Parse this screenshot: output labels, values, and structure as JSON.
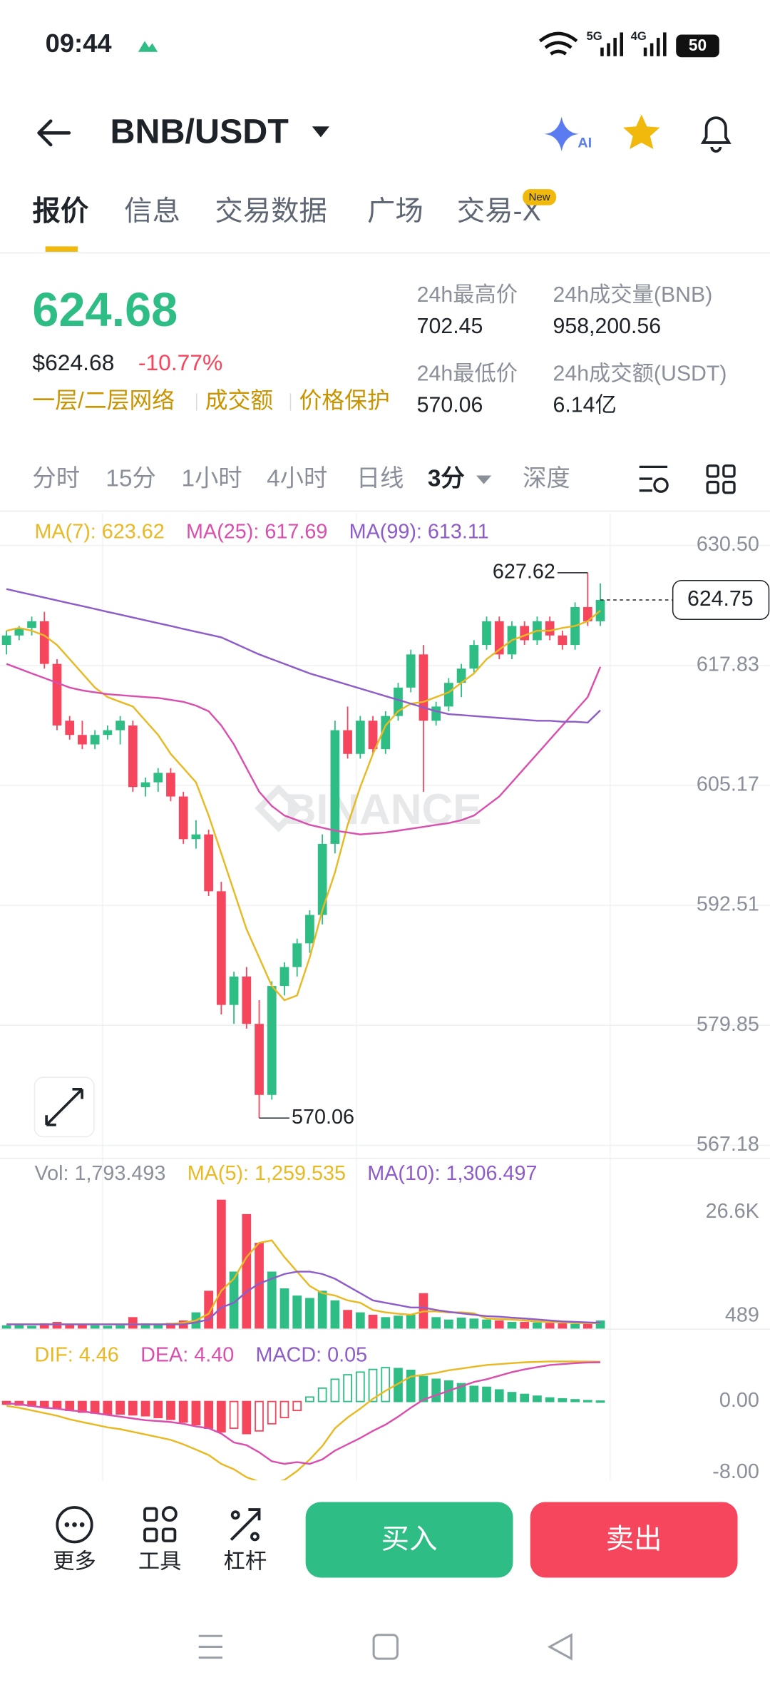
{
  "status_bar": {
    "time": "09:44",
    "net1": "5G",
    "net2": "4G",
    "battery": "50"
  },
  "header": {
    "pair": "BNB/USDT",
    "ai": "AI"
  },
  "tabs": {
    "items": [
      "报价",
      "信息",
      "交易数据",
      "广场",
      "交易-X"
    ],
    "badge": "New"
  },
  "ticker": {
    "price": "624.68",
    "usd": "$624.68",
    "change": "-10.77%",
    "tags": [
      "一层/二层网络",
      "成交额",
      "价格保护"
    ],
    "stats": [
      {
        "label": "24h最高价",
        "value": "702.45"
      },
      {
        "label": "24h成交量(BNB)",
        "value": "958,200.56"
      },
      {
        "label": "24h最低价",
        "value": "570.06"
      },
      {
        "label": "24h成交额(USDT)",
        "value": "6.14亿"
      }
    ]
  },
  "intervals": [
    "分时",
    "15分",
    "1小时",
    "4小时",
    "日线",
    "3分",
    "深度"
  ],
  "kline": {
    "watermark": "BINANCE",
    "legend": [
      "MA(7): 623.62",
      "MA(25): 617.69",
      "MA(99): 613.11"
    ],
    "ylim": [
      565.8,
      633.9
    ],
    "yticks": [
      {
        "value": 630.5,
        "label": "630.50"
      },
      617.83,
      605.17,
      592.51,
      579.85,
      567.18
    ],
    "up_color": "#2ebd85",
    "down_color": "#f6465d",
    "candles": [
      [
        620.0,
        621.5,
        619.0,
        621.0
      ],
      [
        621.0,
        622.0,
        620.5,
        621.8
      ],
      [
        621.8,
        623.0,
        621.0,
        622.5
      ],
      [
        622.5,
        623.5,
        617.5,
        618.0
      ],
      [
        618.0,
        618.5,
        611.0,
        611.5
      ],
      [
        612.0,
        612.5,
        610.0,
        610.5
      ],
      [
        610.5,
        612.0,
        609.0,
        609.5
      ],
      [
        609.5,
        611.0,
        609.0,
        610.5
      ],
      [
        610.5,
        611.5,
        610.0,
        611.0
      ],
      [
        611.0,
        612.5,
        609.5,
        612.0
      ],
      [
        611.5,
        612.0,
        604.5,
        605.0
      ],
      [
        605.0,
        606.0,
        604.0,
        605.5
      ],
      [
        605.5,
        607.0,
        604.5,
        606.5
      ],
      [
        606.5,
        607.0,
        603.5,
        604.0
      ],
      [
        604.0,
        604.5,
        599.0,
        599.5
      ],
      [
        599.5,
        601.5,
        598.5,
        600.0
      ],
      [
        600.0,
        600.5,
        593.5,
        594.0
      ],
      [
        594.0,
        595.0,
        581.0,
        582.0
      ],
      [
        582.0,
        585.5,
        580.0,
        585.0
      ],
      [
        585.0,
        586.0,
        579.5,
        580.0
      ],
      [
        580.0,
        582.5,
        570.06,
        572.5
      ],
      [
        572.5,
        584.5,
        572.0,
        584.0
      ],
      [
        584.0,
        586.5,
        583.0,
        586.0
      ],
      [
        586.0,
        589.0,
        585.0,
        588.5
      ],
      [
        588.5,
        592.0,
        587.5,
        591.5
      ],
      [
        591.5,
        600.0,
        590.5,
        599.0
      ],
      [
        599.0,
        612.0,
        598.0,
        611.0
      ],
      [
        611.0,
        613.5,
        608.0,
        608.5
      ],
      [
        608.5,
        612.5,
        608.0,
        612.0
      ],
      [
        612.0,
        612.5,
        608.5,
        609.0
      ],
      [
        609.0,
        613.0,
        608.5,
        612.5
      ],
      [
        612.5,
        616.0,
        612.0,
        615.5
      ],
      [
        615.5,
        619.5,
        615.0,
        619.0
      ],
      [
        619.0,
        620.0,
        604.5,
        612.0
      ],
      [
        612.0,
        614.0,
        611.5,
        613.5
      ],
      [
        613.5,
        616.5,
        613.0,
        616.0
      ],
      [
        616.0,
        618.0,
        614.5,
        617.5
      ],
      [
        617.5,
        620.5,
        617.0,
        620.0
      ],
      [
        620.0,
        623.0,
        619.5,
        622.5
      ],
      [
        622.5,
        623.0,
        618.5,
        619.0
      ],
      [
        619.0,
        622.5,
        618.5,
        622.0
      ],
      [
        622.0,
        622.5,
        620.0,
        620.5
      ],
      [
        620.5,
        623.0,
        620.0,
        622.5
      ],
      [
        622.5,
        623.0,
        620.5,
        621.0
      ],
      [
        621.0,
        621.5,
        619.5,
        620.0
      ],
      [
        620.0,
        624.5,
        619.5,
        624.0
      ],
      [
        624.0,
        627.62,
        622.0,
        622.5
      ],
      [
        622.5,
        626.5,
        622.0,
        624.75
      ]
    ],
    "ma": [
      {
        "name": "MA(7)",
        "color": "#e8b923",
        "values": [
          621.5,
          621.8,
          621.5,
          621,
          620,
          618.5,
          617,
          615.5,
          614.5,
          614,
          613.5,
          612,
          610.5,
          608.5,
          607,
          605.5,
          602,
          598,
          594,
          590,
          587,
          584,
          582.5,
          583,
          587,
          592,
          596,
          601,
          605,
          608.5,
          611.5,
          613,
          613.8,
          614,
          614.5,
          615,
          616,
          617,
          618.5,
          619.5,
          620.5,
          621,
          621.5,
          621.5,
          621.8,
          622,
          622.5,
          623.62
        ]
      },
      {
        "name": "MA(25)",
        "color": "#d94fae",
        "values": [
          618,
          617.5,
          617,
          616.5,
          616,
          615.5,
          615.2,
          615,
          614.8,
          614.7,
          614.6,
          614.5,
          614.4,
          614.2,
          614,
          613.6,
          613,
          611.5,
          609.5,
          607,
          604.5,
          603,
          602,
          601.5,
          601,
          600.7,
          600.4,
          600.2,
          600,
          600.1,
          600.2,
          600.4,
          600.6,
          600.8,
          601,
          601.2,
          601.5,
          602,
          603,
          604,
          605.5,
          607,
          608.5,
          610,
          611.5,
          613,
          614.5,
          617.69
        ]
      },
      {
        "name": "MA(99)",
        "color": "#8e5cc9",
        "values": [
          625.9,
          625.6,
          625.3,
          625,
          624.7,
          624.4,
          624.1,
          623.8,
          623.5,
          623.2,
          622.9,
          622.6,
          622.3,
          622,
          621.7,
          621.4,
          621.1,
          620.8,
          620.2,
          619.6,
          619,
          618.5,
          618,
          617.5,
          617,
          616.6,
          616.2,
          615.8,
          615.4,
          615,
          614.6,
          614.2,
          613.8,
          613.4,
          613,
          612.7,
          612.6,
          612.5,
          612.4,
          612.3,
          612.2,
          612.1,
          612,
          612,
          611.9,
          611.9,
          611.8,
          613.11
        ]
      }
    ]
  },
  "volume": {
    "legend": [
      "Vol: 1,793.493",
      "MA(5): 1,259.535",
      "MA(10): 1,306.497"
    ],
    "ylim": [
      0,
      29300
    ],
    "yticks": [
      {
        "value": 26600,
        "label": "26.6K"
      },
      489
    ],
    "values": [
      800,
      900,
      700,
      1200,
      1500,
      1100,
      900,
      800,
      700,
      800,
      2500,
      1200,
      1000,
      1300,
      1800,
      3500,
      8000,
      27000,
      12000,
      24000,
      18000,
      12000,
      8500,
      7000,
      6500,
      8000,
      6000,
      4000,
      3500,
      3000,
      2500,
      2800,
      3000,
      7500,
      2500,
      2000,
      2400,
      2200,
      2000,
      1800,
      1500,
      1500,
      1400,
      1300,
      1200,
      1100,
      1200,
      1793.493
    ],
    "ma": [
      {
        "name": "MA(5)",
        "color": "#e8b923",
        "values": [
          1000,
          1000,
          1000,
          1000,
          1000,
          1000,
          1000,
          1000,
          1000,
          1000,
          1000,
          1000,
          1000,
          1100,
          1300,
          1800,
          3200,
          8000,
          10500,
          15000,
          18000,
          18500,
          15000,
          12000,
          9000,
          7500,
          7000,
          6000,
          5500,
          4000,
          3500,
          3200,
          3000,
          3700,
          3700,
          3500,
          3500,
          3300,
          2200,
          2100,
          2000,
          1800,
          1600,
          1500,
          1400,
          1300,
          1250,
          1259.535
        ]
      },
      {
        "name": "MA(10)",
        "color": "#8e5cc9",
        "values": [
          1000,
          1000,
          1000,
          1000,
          1000,
          1000,
          1000,
          1000,
          1000,
          1000,
          1000,
          1000,
          1000,
          1000,
          1000,
          1400,
          2000,
          4500,
          5500,
          7800,
          9500,
          10500,
          11500,
          12000,
          12000,
          11500,
          10500,
          9000,
          7500,
          6000,
          5500,
          5000,
          4500,
          4500,
          4000,
          3600,
          3300,
          3000,
          2700,
          2600,
          2400,
          2200,
          2000,
          1800,
          1600,
          1500,
          1400,
          1306.497
        ]
      }
    ]
  },
  "macd": {
    "legend": [
      "DIF: 4.46",
      "DEA: 4.40",
      "MACD: 0.05"
    ],
    "ylim": [
      -8.85,
      6.91
    ],
    "yticks": [
      {
        "value": 0,
        "label": "0.00"
      },
      {
        "value": -8,
        "label": "-8.00"
      }
    ],
    "hist": [
      -0.3,
      -0.4,
      -0.5,
      -0.6,
      -0.8,
      -1.0,
      -1.2,
      -1.3,
      -1.4,
      -1.4,
      -1.5,
      -1.6,
      -1.8,
      -2.0,
      -2.3,
      -2.6,
      -3.0,
      -3.4,
      -3.0,
      -3.6,
      -3.3,
      -2.5,
      -1.8,
      -1.0,
      0.5,
      1.5,
      2.5,
      3.0,
      3.3,
      3.6,
      3.8,
      3.7,
      3.5,
      2.8,
      2.5,
      2.3,
      2.0,
      1.7,
      1.6,
      1.3,
      1.0,
      0.8,
      0.6,
      0.4,
      0.3,
      0.2,
      0.1,
      0.05
    ],
    "lines": [
      {
        "name": "DIF",
        "color": "#e8b923",
        "values": [
          -0.5,
          -0.7,
          -1,
          -1.3,
          -1.6,
          -2,
          -2.3,
          -2.6,
          -2.9,
          -3.1,
          -3.4,
          -3.7,
          -4,
          -4.3,
          -4.8,
          -5.4,
          -6,
          -7,
          -7.6,
          -8.5,
          -9,
          -9.2,
          -8.8,
          -7.8,
          -6.5,
          -5,
          -3,
          -1.8,
          -0.8,
          0.3,
          1.2,
          2,
          2.8,
          3,
          3.2,
          3.5,
          3.7,
          3.9,
          4.1,
          4.2,
          4.3,
          4.4,
          4.45,
          4.5,
          4.5,
          4.5,
          4.48,
          4.46
        ]
      },
      {
        "name": "DEA",
        "color": "#d94fae",
        "values": [
          -0.2,
          -0.3,
          -0.5,
          -0.7,
          -0.8,
          -1,
          -1.1,
          -1.3,
          -1.5,
          -1.7,
          -1.9,
          -2.1,
          -2.2,
          -2.3,
          -2.5,
          -2.8,
          -3,
          -3.6,
          -4.6,
          -4.9,
          -5.7,
          -6.7,
          -7,
          -6.8,
          -7,
          -6.5,
          -5.5,
          -4.8,
          -4.1,
          -3.3,
          -2.6,
          -1.7,
          -0.7,
          0.2,
          0.7,
          1.2,
          1.7,
          2.2,
          2.5,
          2.9,
          3.3,
          3.6,
          3.85,
          4.1,
          4.2,
          4.3,
          4.38,
          4.4
        ]
      }
    ]
  },
  "bottom_bar": {
    "tools": [
      "更多",
      "工具",
      "杠杆"
    ],
    "buy": "买入",
    "sell": "卖出"
  }
}
